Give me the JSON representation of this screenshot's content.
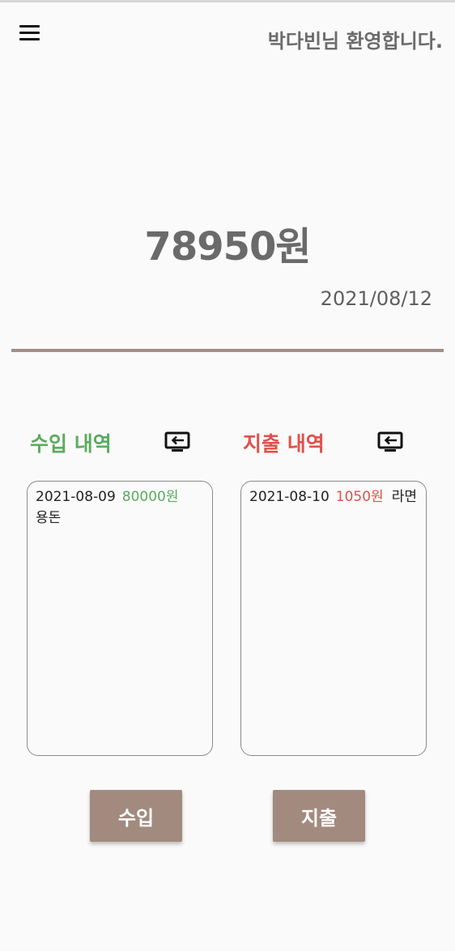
{
  "header": {
    "welcome_text": "박다빈님 환영합니다."
  },
  "summary": {
    "balance": "78950원",
    "date": "2021/08/12"
  },
  "income": {
    "title": "수입 내역",
    "color": "#5aab5f",
    "entries": [
      {
        "date": "2021-08-09",
        "amount": "80000원",
        "memo": "용돈"
      }
    ],
    "button_label": "수입"
  },
  "expense": {
    "title": "지출 내역",
    "color": "#e0504b",
    "entries": [
      {
        "date": "2021-08-10",
        "amount": "1050원",
        "memo": "라면"
      }
    ],
    "button_label": "지출"
  },
  "icons": {
    "menu": "hamburger-menu-icon",
    "swap": "monitor-swap-icon"
  },
  "colors": {
    "accent": "#a28a7e",
    "divider": "#a28f87",
    "text_gray": "#6a6a6a"
  }
}
